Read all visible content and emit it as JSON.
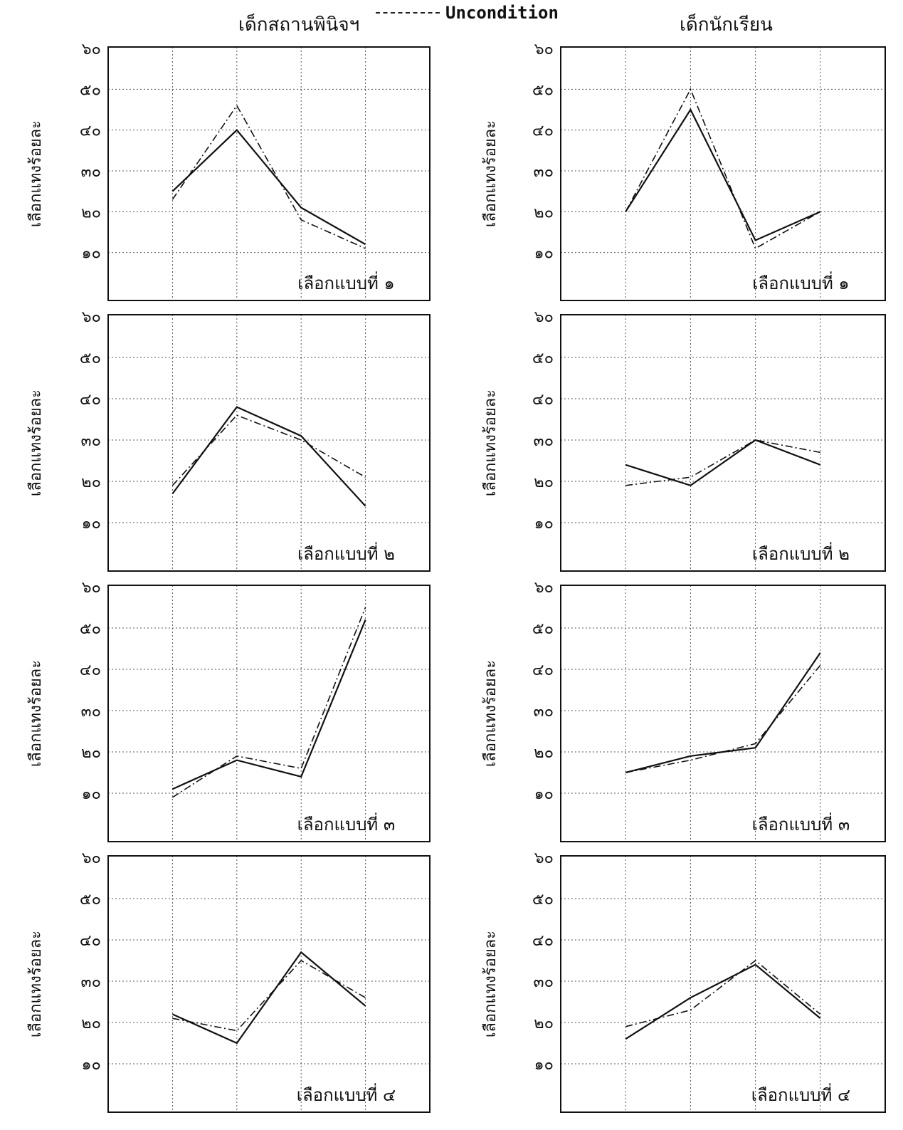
{
  "header": {
    "left_title": "เด็กสถานพินิจฯ",
    "right_title": "เด็กนักเรียน",
    "legend_label": "Uncondition"
  },
  "colors": {
    "ink": "#111111",
    "grid": "#555555",
    "background": "#ffffff"
  },
  "chart_data": [
    {
      "type": "line",
      "group": "เด็กสถานพินิจฯ",
      "title": "เลือกแบบที่ ๑",
      "ylabel": "เลือกแทงร้อยละ",
      "yticks": [
        "๑๐",
        "๒๐",
        "๓๐",
        "๔๐",
        "๕๐",
        "๖๐"
      ],
      "ylim": [
        0,
        60
      ],
      "x": [
        1,
        2,
        3,
        4
      ],
      "grid": true,
      "series": [
        {
          "style": "solid",
          "values": [
            25,
            40,
            21,
            12
          ]
        },
        {
          "name": "Uncondition",
          "style": "dash-dot",
          "values": [
            23,
            46,
            18,
            11
          ]
        }
      ]
    },
    {
      "type": "line",
      "group": "เด็กนักเรียน",
      "title": "เลือกแบบที่ ๑",
      "ylabel": "เลือกแทงร้อยละ",
      "yticks": [
        "๑๐",
        "๒๐",
        "๓๐",
        "๔๐",
        "๕๐",
        "๖๐"
      ],
      "ylim": [
        0,
        60
      ],
      "x": [
        1,
        2,
        3,
        4
      ],
      "grid": true,
      "series": [
        {
          "style": "solid",
          "values": [
            20,
            45,
            13,
            20
          ]
        },
        {
          "name": "Uncondition",
          "style": "dash-dot",
          "values": [
            20,
            50,
            11,
            20
          ]
        }
      ]
    },
    {
      "type": "line",
      "group": "เด็กสถานพินิจฯ",
      "title": "เลือกแบบที่ ๒",
      "ylabel": "เลือกแทงร้อยละ",
      "yticks": [
        "๑๐",
        "๒๐",
        "๓๐",
        "๔๐",
        "๕๐",
        "๖๐"
      ],
      "ylim": [
        0,
        60
      ],
      "x": [
        1,
        2,
        3,
        4
      ],
      "grid": true,
      "series": [
        {
          "style": "solid",
          "values": [
            17,
            38,
            31,
            14
          ]
        },
        {
          "name": "Uncondition",
          "style": "dash-dot",
          "values": [
            19,
            36,
            30,
            21
          ]
        }
      ]
    },
    {
      "type": "line",
      "group": "เด็กนักเรียน",
      "title": "เลือกแบบที่ ๒",
      "ylabel": "เลือกแทงร้อยละ",
      "yticks": [
        "๑๐",
        "๒๐",
        "๓๐",
        "๔๐",
        "๕๐",
        "๖๐"
      ],
      "ylim": [
        0,
        60
      ],
      "x": [
        1,
        2,
        3,
        4
      ],
      "grid": true,
      "series": [
        {
          "style": "solid",
          "values": [
            24,
            19,
            30,
            24
          ]
        },
        {
          "name": "Uncondition",
          "style": "dash-dot",
          "values": [
            19,
            21,
            30,
            27
          ]
        }
      ]
    },
    {
      "type": "line",
      "group": "เด็กสถานพินิจฯ",
      "title": "เลือกแบบที่ ๓",
      "ylabel": "เลือกแทงร้อยละ",
      "yticks": [
        "๑๐",
        "๒๐",
        "๓๐",
        "๔๐",
        "๕๐",
        "๖๐"
      ],
      "ylim": [
        0,
        60
      ],
      "x": [
        1,
        2,
        3,
        4
      ],
      "grid": true,
      "series": [
        {
          "style": "solid",
          "values": [
            11,
            18,
            14,
            52
          ]
        },
        {
          "name": "Uncondition",
          "style": "dash-dot",
          "values": [
            9,
            19,
            16,
            55
          ]
        }
      ]
    },
    {
      "type": "line",
      "group": "เด็กนักเรียน",
      "title": "เลือกแบบที่ ๓",
      "ylabel": "เลือกแทงร้อยละ",
      "yticks": [
        "๑๐",
        "๒๐",
        "๓๐",
        "๔๐",
        "๕๐",
        "๖๐"
      ],
      "ylim": [
        0,
        60
      ],
      "x": [
        1,
        2,
        3,
        4
      ],
      "grid": true,
      "series": [
        {
          "style": "solid",
          "values": [
            15,
            19,
            21,
            44
          ]
        },
        {
          "name": "Uncondition",
          "style": "dash-dot",
          "values": [
            15,
            18,
            22,
            41
          ]
        }
      ]
    },
    {
      "type": "line",
      "group": "เด็กสถานพินิจฯ",
      "title": "เลือกแบบที่ ๔",
      "ylabel": "เลือกแทงร้อยละ",
      "yticks": [
        "๑๐",
        "๒๐",
        "๓๐",
        "๔๐",
        "๕๐",
        "๖๐"
      ],
      "ylim": [
        0,
        60
      ],
      "x": [
        1,
        2,
        3,
        4
      ],
      "grid": true,
      "series": [
        {
          "style": "solid",
          "values": [
            22,
            15,
            37,
            24
          ]
        },
        {
          "name": "Uncondition",
          "style": "dash-dot",
          "values": [
            21,
            18,
            35,
            26
          ]
        }
      ]
    },
    {
      "type": "line",
      "group": "เด็กนักเรียน",
      "title": "เลือกแบบที่ ๔",
      "ylabel": "เลือกแทงร้อยละ",
      "yticks": [
        "๑๐",
        "๒๐",
        "๓๐",
        "๔๐",
        "๕๐",
        "๖๐"
      ],
      "ylim": [
        0,
        60
      ],
      "x": [
        1,
        2,
        3,
        4
      ],
      "grid": true,
      "series": [
        {
          "style": "solid",
          "values": [
            16,
            26,
            34,
            21
          ]
        },
        {
          "name": "Uncondition",
          "style": "dash-dot",
          "values": [
            19,
            23,
            35,
            22
          ]
        }
      ]
    }
  ]
}
